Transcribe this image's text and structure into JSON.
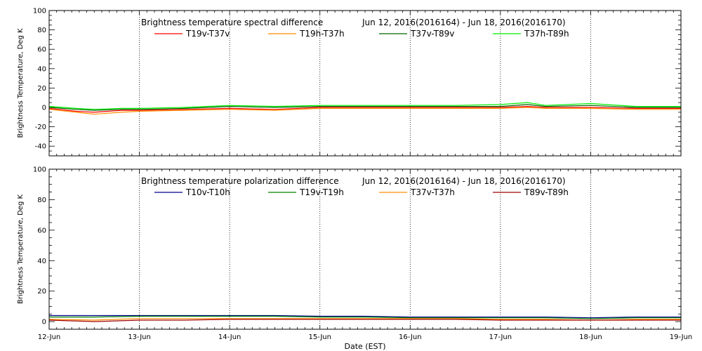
{
  "chart_data": [
    {
      "type": "line",
      "title": "Brightness temperature spectral difference",
      "date_range": "Jun 12, 2016(2016164) - Jun 18, 2016(2016170)",
      "ylabel": "Brightness Temperature, Deg K",
      "xlabel": "",
      "ylim": [
        -50,
        100
      ],
      "yticks": [
        -40,
        -20,
        0,
        20,
        40,
        60,
        80,
        100
      ],
      "ytick_labels": [
        "-40",
        "-20",
        "0",
        "20",
        "40",
        "60",
        "80",
        "100"
      ],
      "xlim": [
        0,
        7
      ],
      "x_unit": "days since 12-Jun",
      "grid": "vertical dotted",
      "legend_placement": "top",
      "series": [
        {
          "name": "T19v-T37v",
          "color": "#ff0000",
          "x": [
            0,
            0.3,
            0.5,
            0.8,
            1.0,
            1.5,
            2.0,
            2.5,
            3.0,
            3.5,
            4.0,
            4.5,
            5.0,
            5.3,
            5.5,
            6.0,
            6.5,
            7.0
          ],
          "y": [
            -1,
            -4,
            -5,
            -3,
            -3,
            -2,
            -1,
            -2,
            0,
            0,
            0,
            0,
            0,
            1,
            0,
            0,
            -1,
            -1
          ]
        },
        {
          "name": "T19h-T37h",
          "color": "#ff8c00",
          "x": [
            0,
            0.3,
            0.5,
            0.8,
            1.0,
            1.5,
            2.0,
            2.5,
            3.0,
            3.5,
            4.0,
            4.5,
            5.0,
            5.3,
            5.5,
            6.0,
            6.5,
            7.0
          ],
          "y": [
            -2,
            -5,
            -7,
            -5,
            -4,
            -3,
            -2,
            -3,
            -1,
            -1,
            -1,
            -1,
            -1,
            0,
            -1,
            -1,
            -2,
            -2
          ]
        },
        {
          "name": "T37v-T89v",
          "color": "#006400",
          "x": [
            0,
            0.3,
            0.5,
            0.8,
            1.0,
            1.5,
            2.0,
            2.5,
            3.0,
            3.5,
            4.0,
            4.5,
            5.0,
            5.3,
            5.5,
            6.0,
            6.5,
            7.0
          ],
          "y": [
            0,
            -2,
            -3,
            -2,
            -2,
            -1,
            1,
            0,
            1,
            1,
            1,
            1,
            1,
            3,
            1,
            2,
            0,
            0
          ]
        },
        {
          "name": "T37h-T89h",
          "color": "#00ee00",
          "x": [
            0,
            0.3,
            0.5,
            0.8,
            1.0,
            1.5,
            2.0,
            2.5,
            3.0,
            3.5,
            4.0,
            4.5,
            5.0,
            5.3,
            5.5,
            6.0,
            6.5,
            7.0
          ],
          "y": [
            1,
            -1,
            -2,
            -1,
            -1,
            0,
            2,
            1,
            2,
            2,
            2,
            2,
            3,
            5,
            2,
            4,
            1,
            1
          ]
        }
      ]
    },
    {
      "type": "line",
      "title": "Brightness temperature polarization difference",
      "date_range": "Jun 12, 2016(2016164) - Jun 18, 2016(2016170)",
      "ylabel": "Brightness Temperature, Deg K",
      "xlabel": "Date (EST)",
      "ylim": [
        -5,
        100
      ],
      "yticks": [
        0,
        20,
        40,
        60,
        80,
        100
      ],
      "ytick_labels": [
        "0",
        "20",
        "40",
        "60",
        "80",
        "100"
      ],
      "xlim": [
        0,
        7
      ],
      "x_unit": "days since 12-Jun",
      "grid": "vertical dotted",
      "legend_placement": "top",
      "xticks": [
        0,
        1,
        2,
        3,
        4,
        5,
        6,
        7
      ],
      "xtick_labels": [
        "12-Jun",
        "13-Jun",
        "14-Jun",
        "15-Jun",
        "16-Jun",
        "17-Jun",
        "18-Jun",
        "19-Jun"
      ],
      "series": [
        {
          "name": "T10v-T10h",
          "color": "#00008b",
          "x": [
            0,
            0.5,
            1.0,
            1.5,
            2.0,
            2.5,
            3.0,
            3.5,
            4.0,
            4.5,
            5.0,
            5.5,
            6.0,
            6.5,
            7.0
          ],
          "y": [
            4,
            4,
            4,
            4,
            4,
            4,
            3.5,
            3.5,
            3,
            3,
            3,
            3,
            2.5,
            3,
            3
          ]
        },
        {
          "name": "T19v-T19h",
          "color": "#008000",
          "x": [
            0,
            0.5,
            1.0,
            1.5,
            2.0,
            2.5,
            3.0,
            3.5,
            4.0,
            4.5,
            5.0,
            5.5,
            6.0,
            6.5,
            7.0
          ],
          "y": [
            3,
            3,
            3.5,
            3.5,
            3.5,
            3.5,
            3,
            3,
            2.5,
            2.5,
            2.5,
            2.5,
            2,
            2.5,
            2.5
          ]
        },
        {
          "name": "T37v-T37h",
          "color": "#ff8c00",
          "x": [
            0,
            0.5,
            1.0,
            1.5,
            2.0,
            2.5,
            3.0,
            3.5,
            4.0,
            4.5,
            5.0,
            5.5,
            6.0,
            6.5,
            7.0
          ],
          "y": [
            1.5,
            1,
            2,
            2,
            2,
            2,
            2,
            2,
            2,
            2,
            1.5,
            1.5,
            1,
            1.5,
            1.5
          ]
        },
        {
          "name": "T89v-T89h",
          "color": "#a00000",
          "x": [
            0,
            0.5,
            1.0,
            1.5,
            2.0,
            2.5,
            3.0,
            3.5,
            4.0,
            4.5,
            5.0,
            5.5,
            6.0,
            6.5,
            7.0
          ],
          "y": [
            1,
            0,
            1,
            1,
            1.5,
            1.5,
            1.5,
            1.5,
            1.5,
            1.5,
            1,
            1,
            1,
            1,
            1
          ]
        }
      ]
    }
  ]
}
